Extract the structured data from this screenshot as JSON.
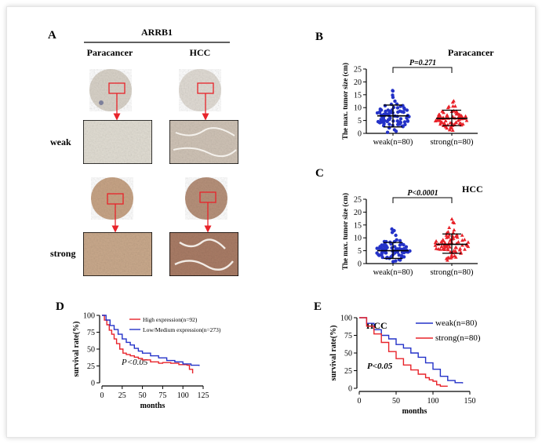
{
  "panels": {
    "A": {
      "letter": "A",
      "header": "ARRB1",
      "col1": "Paracancer",
      "col2": "HCC",
      "row1": "weak",
      "row2": "strong"
    },
    "B": {
      "letter": "B",
      "tag": "Paracancer"
    },
    "C": {
      "letter": "C",
      "tag": "HCC"
    },
    "D": {
      "letter": "D"
    },
    "E": {
      "letter": "E",
      "tag": "HCC"
    }
  },
  "colors": {
    "red": "#e8232a",
    "blue": "#2432c8"
  },
  "chart_data": [
    {
      "id": "B",
      "type": "scatter",
      "ylabel": "The max. tumor size (cm)",
      "ylim": [
        0,
        25
      ],
      "yticks": [
        0,
        5,
        10,
        15,
        20,
        25
      ],
      "categories": [
        "weak(n=80)",
        "strong(n=80)"
      ],
      "series": [
        {
          "color": "blue",
          "mean": 6.8,
          "sd_low": 2.5,
          "sd_high": 11.0
        },
        {
          "color": "red",
          "mean": 5.8,
          "sd_low": 3.0,
          "sd_high": 9.0
        }
      ],
      "annotation": "P=0.271"
    },
    {
      "id": "C",
      "type": "scatter",
      "ylabel": "The max. tumor size (cm)",
      "ylim": [
        0,
        25
      ],
      "yticks": [
        0,
        5,
        10,
        15,
        20,
        25
      ],
      "categories": [
        "weak(n=80)",
        "strong(n=80)"
      ],
      "series": [
        {
          "color": "blue",
          "mean": 5.0,
          "sd_low": 2.0,
          "sd_high": 8.2
        },
        {
          "color": "red",
          "mean": 7.5,
          "sd_low": 4.0,
          "sd_high": 11.5
        }
      ],
      "annotation": "P<0.0001"
    },
    {
      "id": "D",
      "type": "line",
      "xlabel": "months",
      "ylabel": "survival rate(%)",
      "xlim": [
        0,
        125
      ],
      "ylim": [
        0,
        100
      ],
      "xticks": [
        0,
        25,
        50,
        75,
        100,
        125
      ],
      "yticks": [
        0,
        25,
        50,
        75,
        100
      ],
      "annotation": "P<0.05",
      "series": [
        {
          "name": "High expression(n=92)",
          "color": "red",
          "x": [
            0,
            3,
            6,
            9,
            12,
            15,
            18,
            22,
            26,
            30,
            35,
            40,
            45,
            50,
            60,
            70,
            75,
            85,
            95,
            105,
            108,
            112
          ],
          "y": [
            100,
            93,
            86,
            78,
            72,
            65,
            58,
            50,
            44,
            42,
            40,
            38,
            36,
            34,
            31,
            29,
            30,
            29,
            27,
            26,
            20,
            14
          ]
        },
        {
          "name": "Low/Medium expression(n=273)",
          "color": "blue",
          "x": [
            0,
            5,
            10,
            15,
            20,
            25,
            30,
            35,
            40,
            45,
            50,
            60,
            70,
            80,
            90,
            100,
            110,
            120
          ],
          "y": [
            100,
            93,
            85,
            79,
            72,
            65,
            60,
            56,
            51,
            47,
            44,
            40,
            37,
            33,
            31,
            28,
            26,
            25
          ]
        }
      ]
    },
    {
      "id": "E",
      "type": "line",
      "xlabel": "months",
      "ylabel": "survival rate(%)",
      "xlim": [
        0,
        150
      ],
      "ylim": [
        0,
        100
      ],
      "xticks": [
        0,
        50,
        100,
        150
      ],
      "yticks": [
        0,
        25,
        50,
        75,
        100
      ],
      "annotation": "P<0.05",
      "series": [
        {
          "name": "weak(n=80)",
          "color": "blue",
          "x": [
            0,
            10,
            20,
            30,
            40,
            50,
            60,
            70,
            80,
            90,
            100,
            110,
            120,
            130,
            140
          ],
          "y": [
            100,
            92,
            83,
            75,
            70,
            62,
            57,
            50,
            44,
            36,
            27,
            17,
            11,
            8,
            7
          ]
        },
        {
          "name": "strong(n=80)",
          "color": "red",
          "x": [
            0,
            10,
            20,
            30,
            40,
            50,
            60,
            70,
            80,
            90,
            95,
            100,
            105,
            110,
            120
          ],
          "y": [
            100,
            88,
            77,
            65,
            52,
            42,
            33,
            26,
            20,
            15,
            12,
            10,
            5,
            3,
            3
          ]
        }
      ]
    }
  ]
}
